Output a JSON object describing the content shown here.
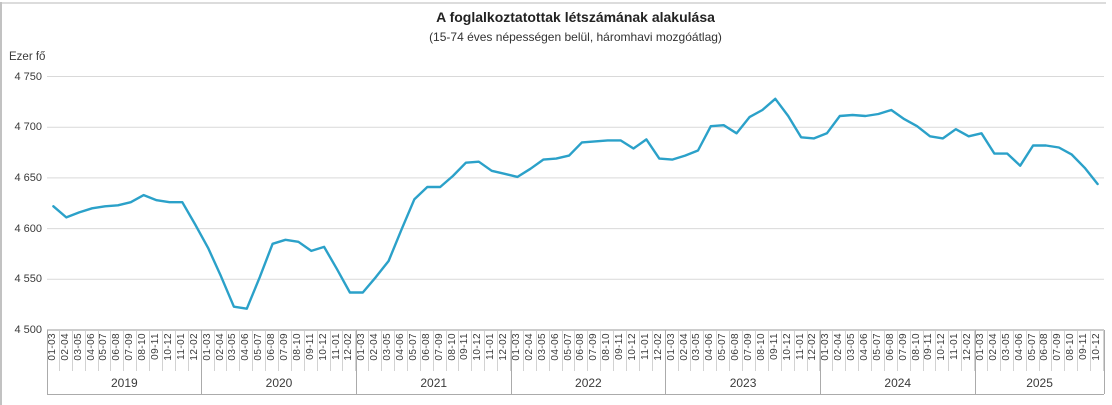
{
  "header": {
    "title": "A foglalkoztatottak létszámának alakulása",
    "subtitle": "(15-74 éves népességen belül, háromhavi mozgóátlag)"
  },
  "chart_data": {
    "type": "line",
    "title": "A foglalkoztatottak létszámának alakulása",
    "subtitle": "(15-74 éves népességen belül, háromhavi mozgóátlag)",
    "unit_label": "Ezer fő",
    "xlabel": "",
    "ylabel": "Ezer fő",
    "ylim": [
      4500,
      4750
    ],
    "grid": true,
    "legend": false,
    "line_color": "#2ba1c9",
    "grid_color": "#d9d9d9",
    "axis_color": "#999999",
    "separator_color": "#ababab",
    "yticks": [
      {
        "value": 4750,
        "label": "4 750"
      },
      {
        "value": 4700,
        "label": "4 700"
      },
      {
        "value": 4650,
        "label": "4 650"
      },
      {
        "value": 4600,
        "label": "4 600"
      },
      {
        "value": 4550,
        "label": "4 550"
      },
      {
        "value": 4500,
        "label": "4 500"
      }
    ],
    "groups": [
      {
        "year": "2019",
        "periods": [
          "01-03",
          "02-04",
          "03-05",
          "04-06",
          "05-07",
          "06-08",
          "07-09",
          "08-10",
          "09-11",
          "10-12",
          "11-01",
          "12-02"
        ],
        "values": [
          4622,
          4611,
          4616,
          4620,
          4622,
          4623,
          4626,
          4633,
          4628,
          4626,
          4626,
          4604
        ]
      },
      {
        "year": "2020",
        "periods": [
          "01-03",
          "02-04",
          "03-05",
          "04-06",
          "05-07",
          "06-08",
          "07-09",
          "08-10",
          "09-11",
          "10-12",
          "11-01",
          "12-02"
        ],
        "values": [
          4581,
          4553,
          4523,
          4521,
          4552,
          4585,
          4589,
          4587,
          4578,
          4582,
          4560,
          4537
        ]
      },
      {
        "year": "2021",
        "periods": [
          "01-03",
          "02-04",
          "03-05",
          "04-06",
          "05-07",
          "06-08",
          "07-09",
          "08-10",
          "09-11",
          "10-12",
          "11-01",
          "12-02"
        ],
        "values": [
          4537,
          4552,
          4568,
          4599,
          4629,
          4641,
          4641,
          4652,
          4665,
          4666,
          4657,
          4654
        ]
      },
      {
        "year": "2022",
        "periods": [
          "01-03",
          "02-04",
          "03-05",
          "04-06",
          "05-07",
          "06-08",
          "07-09",
          "08-10",
          "09-11",
          "10-12",
          "11-01",
          "12-02"
        ],
        "values": [
          4651,
          4659,
          4668,
          4669,
          4672,
          4685,
          4686,
          4687,
          4687,
          4679,
          4688,
          4669
        ]
      },
      {
        "year": "2023",
        "periods": [
          "01-03",
          "02-04",
          "03-05",
          "04-06",
          "05-07",
          "06-08",
          "07-09",
          "08-10",
          "09-11",
          "10-12",
          "11-01",
          "12-02"
        ],
        "values": [
          4668,
          4672,
          4677,
          4701,
          4702,
          4694,
          4710,
          4717,
          4728,
          4711,
          4690,
          4689
        ]
      },
      {
        "year": "2024",
        "periods": [
          "01-03",
          "02-04",
          "03-05",
          "04-06",
          "05-07",
          "06-08",
          "07-09",
          "08-10",
          "09-11",
          "10-12",
          "11-01",
          "12-02"
        ],
        "values": [
          4694,
          4711,
          4712,
          4711,
          4713,
          4717,
          4708,
          4701,
          4691,
          4689,
          4698,
          4691
        ]
      },
      {
        "year": "2025",
        "periods": [
          "01-03",
          "02-04",
          "03-05",
          "04-06",
          "05-07",
          "06-08",
          "07-09",
          "08-10",
          "09-11",
          "10-12"
        ],
        "values": [
          4694,
          4674,
          4674,
          4662,
          4682,
          4682,
          4680,
          4673,
          4660,
          4644
        ]
      }
    ]
  }
}
